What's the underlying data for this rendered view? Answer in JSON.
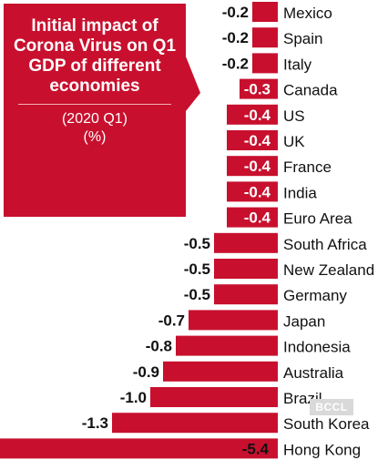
{
  "callout": {
    "title": "Initial impact of Corona Virus on Q1 GDP of different economies",
    "period": "(2020 Q1)",
    "unit": "(%)"
  },
  "watermark": "BCCL",
  "colors": {
    "bar": "#c8102e",
    "callout": "#c8102e",
    "label_text": "#111111"
  },
  "chart_data": {
    "type": "bar",
    "orientation": "horizontal",
    "categories": [
      "Mexico",
      "Spain",
      "Italy",
      "Canada",
      "US",
      "UK",
      "France",
      "India",
      "Euro Area",
      "South Africa",
      "New Zealand",
      "Germany",
      "Japan",
      "Indonesia",
      "Australia",
      "Brazil",
      "South Korea",
      "Hong Kong"
    ],
    "values": [
      -0.2,
      -0.2,
      -0.2,
      -0.3,
      -0.4,
      -0.4,
      -0.4,
      -0.4,
      -0.4,
      -0.5,
      -0.5,
      -0.5,
      -0.7,
      -0.8,
      -0.9,
      -1.0,
      -1.3,
      -5.4
    ],
    "value_labels": [
      "-0.2",
      "-0.2",
      "-0.2",
      "-0.3",
      "-0.4",
      "-0.4",
      "-0.4",
      "-0.4",
      "-0.4",
      "-0.5",
      "-0.5",
      "-0.5",
      "-0.7",
      "-0.8",
      "-0.9",
      "-1.0",
      "-1.3",
      "-5.4"
    ],
    "title": "Initial impact of Corona Virus on Q1 GDP of different economies",
    "subtitle": "(2020 Q1)",
    "unit": "(%)",
    "grid": false,
    "legend": "none"
  }
}
